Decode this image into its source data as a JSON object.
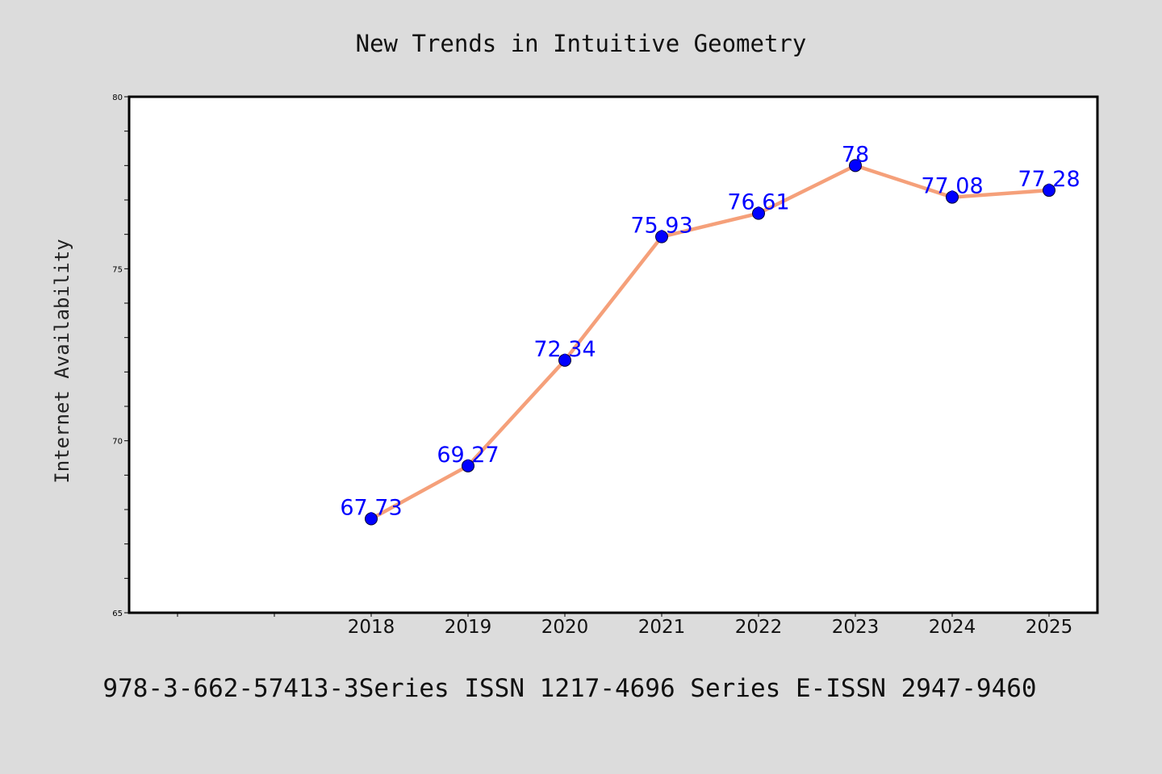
{
  "chart_data": {
    "type": "line",
    "title": "New Trends in Intuitive Geometry",
    "ylabel": "Internet Availability",
    "xlabel": "",
    "categories": [
      "2018",
      "2019",
      "2020",
      "2021",
      "2022",
      "2023",
      "2024",
      "2025"
    ],
    "x_slots": 10,
    "values": [
      67.73,
      69.27,
      72.34,
      75.93,
      76.61,
      78,
      77.08,
      77.28
    ],
    "data_labels": [
      "67.73",
      "69.27",
      "72.34",
      "75.93",
      "76.61",
      "78",
      "77.08",
      "77.28"
    ],
    "ylim": [
      65,
      80
    ],
    "yticks": [
      65,
      70,
      75,
      80
    ],
    "ytick_labels": [
      "65",
      "70",
      "75",
      "80"
    ],
    "grid": false,
    "legend": "none",
    "colors": {
      "line": "#f5a07a",
      "marker": "#0000ff",
      "label": "#0000ff",
      "background": "#dcdcdc",
      "plot_background": "#ffffff"
    }
  },
  "footer": {
    "text": "978-3-662-57413-3Series ISSN 1217-4696 Series E-ISSN 2947-9460"
  }
}
